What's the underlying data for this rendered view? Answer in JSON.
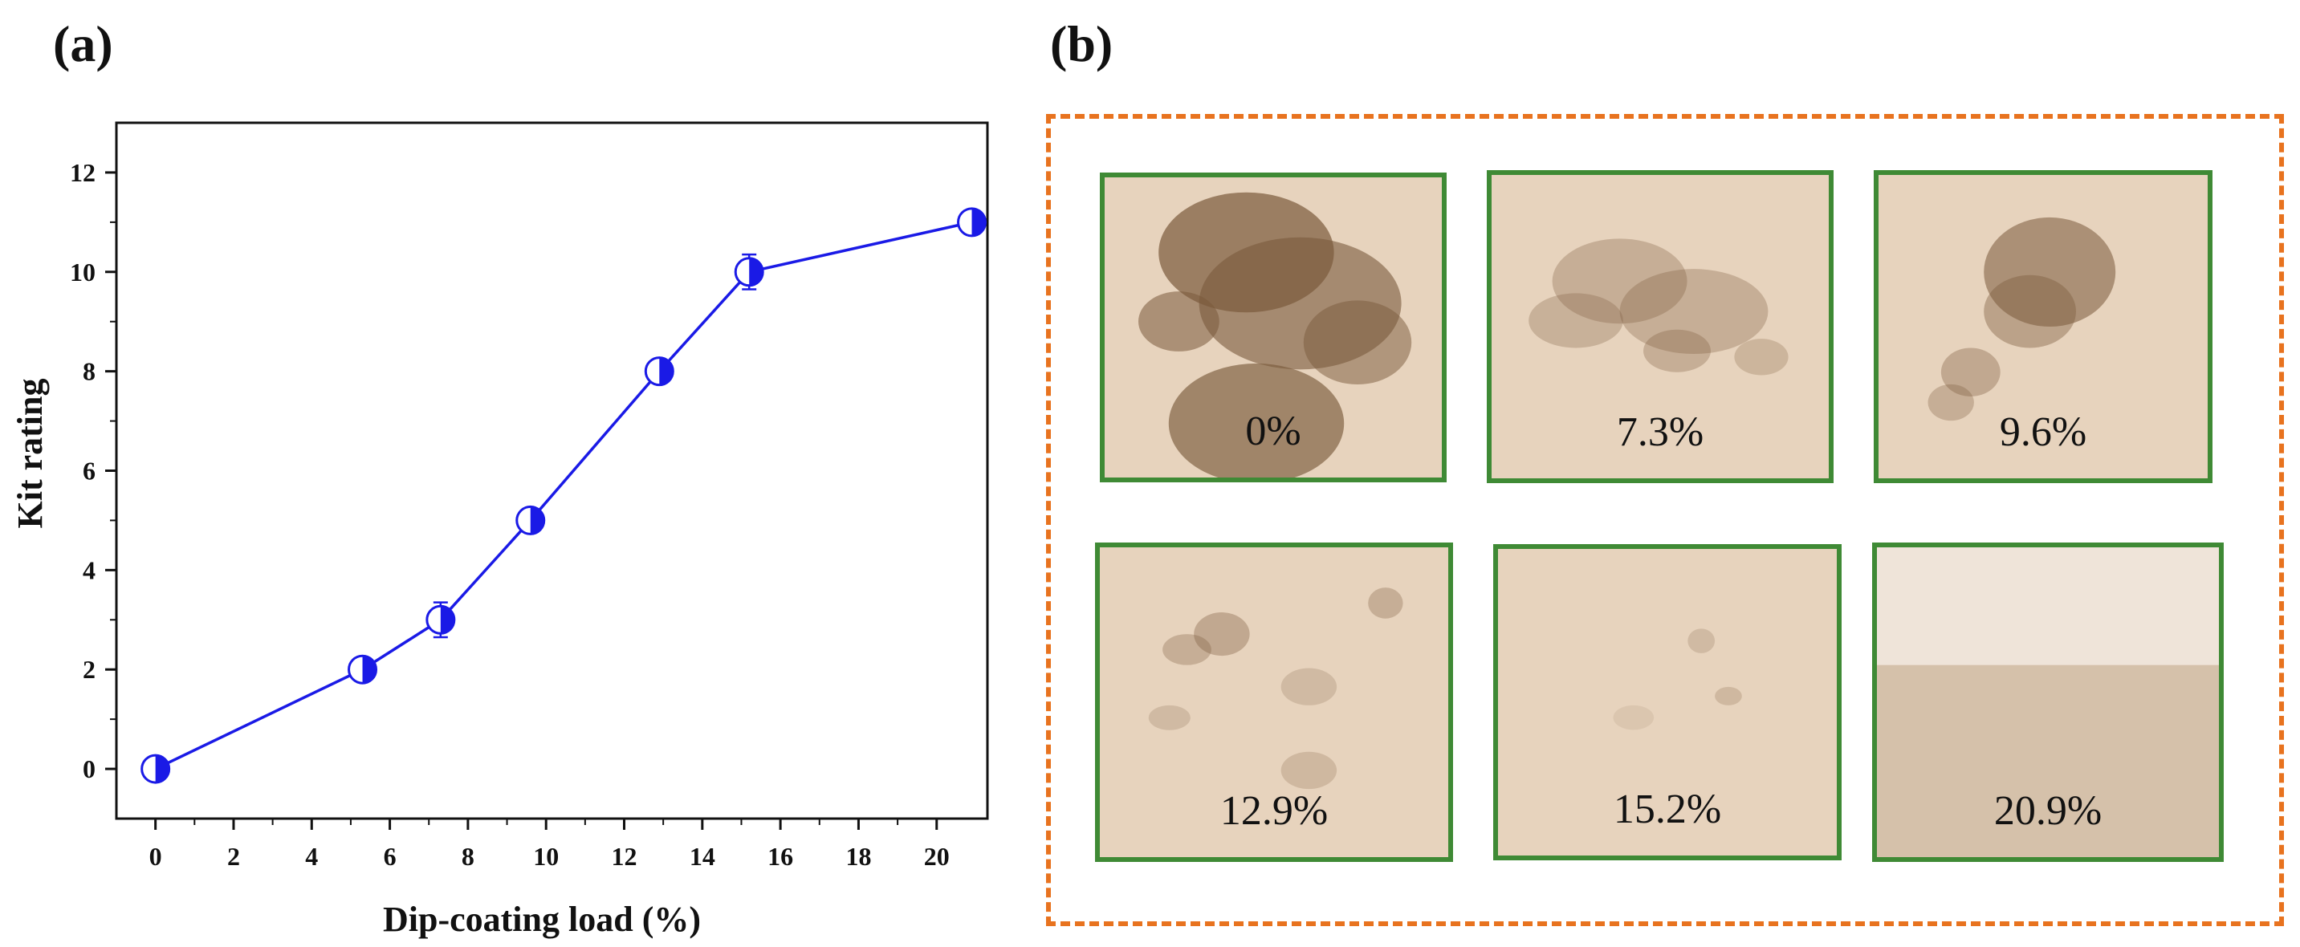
{
  "panels": {
    "a_label": "(a)",
    "b_label": "(b)"
  },
  "chart_data": {
    "type": "line",
    "title": "",
    "xlabel": "Dip-coating load (%)",
    "ylabel": "Kit rating",
    "x": [
      0,
      5.3,
      7.3,
      9.6,
      12.9,
      15.2,
      20.9
    ],
    "series": [
      {
        "name": "Kit rating",
        "values": [
          0,
          2,
          3,
          5,
          8,
          10,
          11
        ],
        "errors": [
          0.2,
          0.15,
          0.35,
          0.2,
          0.2,
          0.35,
          0.2
        ]
      }
    ],
    "xlim": [
      -1,
      21.3
    ],
    "ylim": [
      -1,
      13
    ],
    "xticks": [
      0,
      2,
      4,
      6,
      8,
      10,
      12,
      14,
      16,
      18,
      20
    ],
    "yticks": [
      0,
      2,
      4,
      6,
      8,
      10,
      12
    ],
    "xtick_labels": [
      "0",
      "2",
      "4",
      "6",
      "8",
      "10",
      "12",
      "14",
      "16",
      "18",
      "20"
    ],
    "ytick_labels": [
      "0",
      "2",
      "4",
      "6",
      "8",
      "10",
      "12"
    ],
    "colors": {
      "series": "#1a1ae6",
      "marker_fill": "#1a1ae6",
      "axis": "#111111"
    }
  },
  "samples": [
    {
      "label": "0%",
      "stain": "heavy"
    },
    {
      "label": "7.3%",
      "stain": "medium"
    },
    {
      "label": "9.6%",
      "stain": "medium"
    },
    {
      "label": "12.9%",
      "stain": "light"
    },
    {
      "label": "15.2%",
      "stain": "faint"
    },
    {
      "label": "20.9%",
      "stain": "none"
    }
  ],
  "colors": {
    "frame_dash": "#e8731f",
    "swatch_border": "#3f8a35",
    "fabric": "#e7d3bd",
    "stain": "#7a5a3c"
  }
}
